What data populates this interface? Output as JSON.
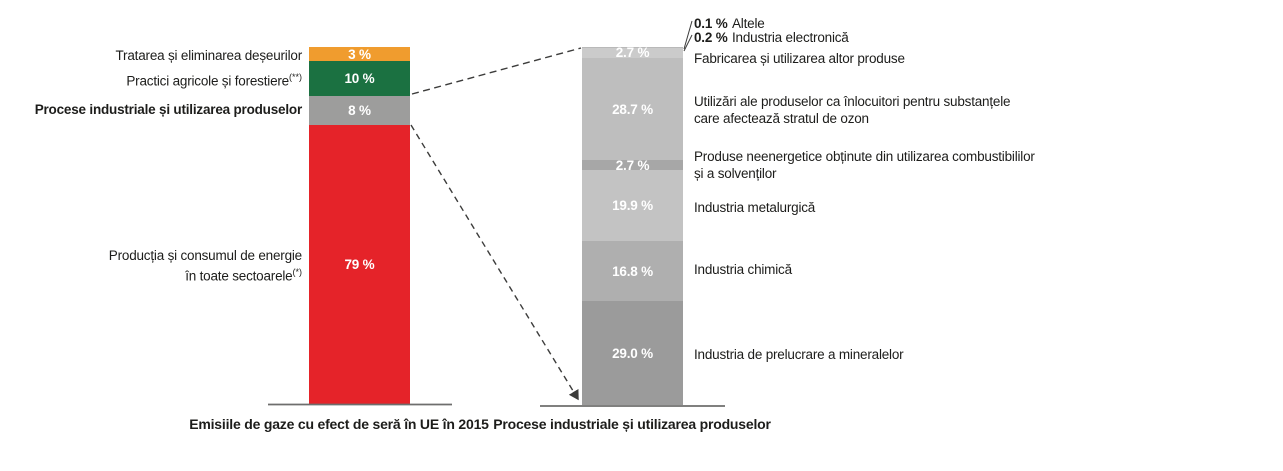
{
  "chart_data": {
    "type": "bar",
    "subtype": "stacked-percentage-with-breakdown",
    "unit": "%",
    "grid": false,
    "legend": false,
    "left_chart": {
      "axis_label": "Emisiile de gaze cu efect de seră în UE în 2015",
      "ylim": [
        0,
        100
      ],
      "segments": [
        {
          "name": "tratarea-deseurilor",
          "label": "Tratarea și eliminarea deșeurilor",
          "sup": "",
          "value": 3,
          "value_label": "3 %",
          "color": "#F09C2E"
        },
        {
          "name": "practici-agricole",
          "label": "Practici agricole și forestiere",
          "sup": "(**)",
          "value": 10,
          "value_label": "10 %",
          "color": "#1B7141"
        },
        {
          "name": "procese-industriale",
          "label": "Procese industriale și utilizarea produselor",
          "sup": "",
          "value": 8,
          "value_label": "8 %",
          "color": "#9D9D9C"
        },
        {
          "name": "energie",
          "label_line1": "Producția și consumul de energie",
          "label_line2": "în toate sectoarele",
          "sup": "(*)",
          "value": 79,
          "value_label": "79 %",
          "color": "#E52329"
        }
      ]
    },
    "right_chart": {
      "axis_label": "Procese industriale și utilizarea produselor",
      "ylim": [
        0,
        100
      ],
      "segments": [
        {
          "name": "altele",
          "label": "Altele",
          "value": 0.1,
          "value_label": "0.1 %",
          "color": "#DCDCDC",
          "in_bar": false
        },
        {
          "name": "industria-electronica",
          "label": "Industria electronică",
          "value": 0.2,
          "value_label": "0.2 %",
          "color": "#B9B9B9",
          "in_bar": false
        },
        {
          "name": "fabricarea-altor-produse",
          "label": "Fabricarea și utilizarea altor produse",
          "value": 2.7,
          "value_label": "2.7 %",
          "color": "#CBCBCB"
        },
        {
          "name": "inlocuitori-ozon",
          "label_line1": "Utilizări ale produselor ca înlocuitori pentru substanțele",
          "label_line2": "care afectează stratul de ozon",
          "value": 28.7,
          "value_label": "28.7 %",
          "color": "#BEBEBE"
        },
        {
          "name": "produse-neenergetice",
          "label_line1": "Produse neenergetice obținute din utilizarea combustibililor",
          "label_line2": "și a solvenților",
          "value": 2.7,
          "value_label": "2.7 %",
          "color": "#A7A7A7"
        },
        {
          "name": "industria-metalurgica",
          "label": "Industria metalurgică",
          "value": 19.9,
          "value_label": "19.9 %",
          "color": "#C3C3C3"
        },
        {
          "name": "industria-chimica",
          "label": "Industria chimică",
          "value": 16.8,
          "value_label": "16.8 %",
          "color": "#AFAFAF"
        },
        {
          "name": "industria-mineralelor",
          "label": "Industria de prelucrare a mineralelor",
          "value": 29.0,
          "value_label": "29.0 %",
          "color": "#9B9B9B"
        }
      ]
    },
    "connector_color": "#3C3C3B",
    "axis_line_color": "#6E6E6D"
  }
}
